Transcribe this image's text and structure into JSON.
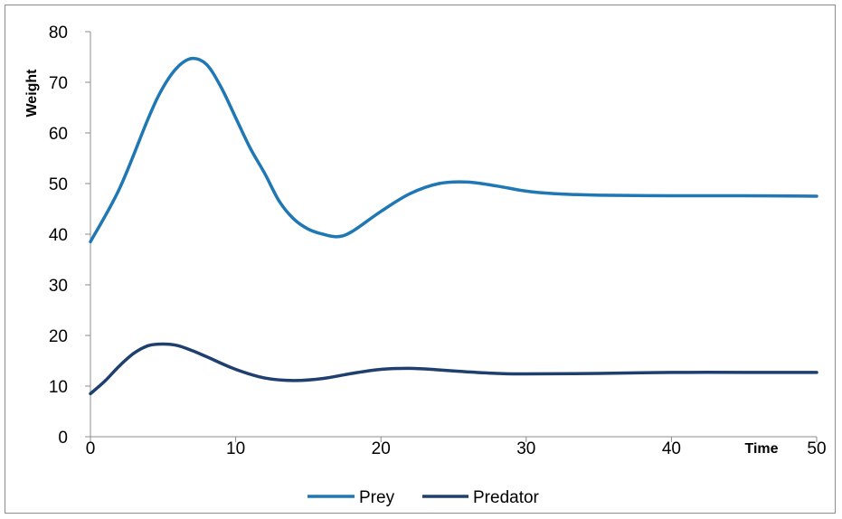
{
  "chart_data": {
    "type": "line",
    "title": "",
    "xlabel": "Time",
    "ylabel": "Weight",
    "xlim": [
      0,
      50
    ],
    "ylim": [
      0,
      80
    ],
    "x_ticks": [
      0,
      10,
      20,
      30,
      40,
      50
    ],
    "y_ticks": [
      0,
      10,
      20,
      30,
      40,
      50,
      60,
      70,
      80
    ],
    "grid": false,
    "legend_position": "bottom",
    "series": [
      {
        "name": "Prey",
        "color": "#1F77B4",
        "x": [
          0,
          2,
          4,
          5,
          6,
          7,
          8,
          9,
          10,
          11,
          12,
          13,
          14,
          15,
          16,
          17,
          18,
          20,
          22,
          24,
          26,
          28,
          30,
          32,
          35,
          40,
          45,
          50
        ],
        "y": [
          38.5,
          49,
          63,
          69,
          73,
          74.7,
          73.5,
          69,
          63,
          57,
          52,
          46.5,
          43,
          41,
          40,
          39.5,
          40.5,
          44.5,
          48,
          50,
          50.3,
          49.5,
          48.5,
          48,
          47.7,
          47.6,
          47.6,
          47.5
        ]
      },
      {
        "name": "Predator",
        "color": "#1F3F6E",
        "x": [
          0,
          1,
          2,
          3,
          4,
          5,
          6,
          7,
          8,
          10,
          12,
          14,
          16,
          18,
          20,
          22,
          24,
          26,
          28,
          30,
          35,
          40,
          45,
          50
        ],
        "y": [
          8.5,
          11,
          14,
          16.5,
          18,
          18.3,
          18,
          17,
          15.8,
          13.3,
          11.6,
          11.1,
          11.5,
          12.5,
          13.3,
          13.5,
          13.2,
          12.8,
          12.5,
          12.4,
          12.5,
          12.7,
          12.7,
          12.7
        ]
      }
    ]
  }
}
